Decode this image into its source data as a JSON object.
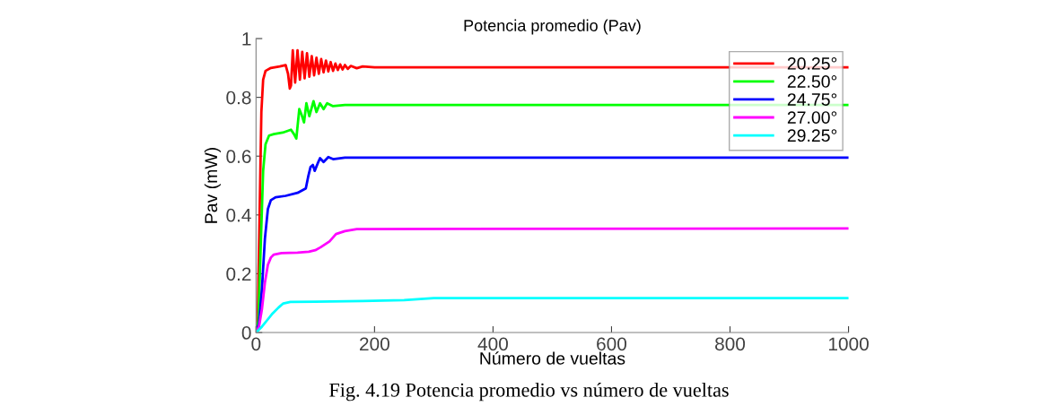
{
  "chart_data": {
    "type": "line",
    "title": "Potencia promedio (Pav)",
    "xlabel": "Número de vueltas",
    "ylabel": "Pav (mW)",
    "annotations": [
      "Fig. 4.19 Potencia promedio vs número de vueltas"
    ],
    "xlim": [
      0,
      1000
    ],
    "ylim": [
      0,
      1
    ],
    "xticks": [
      0,
      200,
      400,
      600,
      800,
      1000
    ],
    "yticks": [
      0,
      0.2,
      0.4,
      0.6,
      0.8,
      1
    ],
    "grid": false,
    "legend": "top right",
    "marker": "none",
    "line_style": "solid",
    "series": [
      {
        "name": "20.25°",
        "color": "#ff0000",
        "x": [
          0,
          3,
          6,
          9,
          12,
          16,
          25,
          40,
          50,
          54,
          57,
          59,
          62,
          66,
          70,
          74,
          78,
          82,
          86,
          90,
          94,
          98,
          102,
          106,
          110,
          114,
          118,
          122,
          126,
          130,
          134,
          138,
          142,
          146,
          150,
          155,
          160,
          170,
          180,
          200,
          300,
          1000
        ],
        "values": [
          0,
          0.05,
          0.4,
          0.75,
          0.86,
          0.89,
          0.9,
          0.905,
          0.91,
          0.88,
          0.83,
          0.84,
          0.96,
          0.85,
          0.96,
          0.86,
          0.955,
          0.865,
          0.95,
          0.87,
          0.94,
          0.875,
          0.935,
          0.88,
          0.93,
          0.885,
          0.925,
          0.888,
          0.92,
          0.89,
          0.915,
          0.893,
          0.912,
          0.895,
          0.91,
          0.897,
          0.907,
          0.899,
          0.905,
          0.902,
          0.902,
          0.902
        ]
      },
      {
        "name": "22.50°",
        "color": "#00ff00",
        "x": [
          0,
          4,
          8,
          12,
          16,
          22,
          30,
          45,
          59,
          64,
          68,
          73,
          77,
          81,
          85,
          90,
          97,
          102,
          108,
          114,
          120,
          130,
          150,
          200,
          1000
        ],
        "values": [
          0,
          0.04,
          0.3,
          0.55,
          0.64,
          0.67,
          0.675,
          0.68,
          0.69,
          0.675,
          0.66,
          0.76,
          0.74,
          0.715,
          0.78,
          0.736,
          0.787,
          0.75,
          0.78,
          0.76,
          0.78,
          0.77,
          0.774,
          0.774,
          0.774
        ]
      },
      {
        "name": "24.75°",
        "color": "#0000ff",
        "x": [
          0,
          5,
          10,
          15,
          20,
          25,
          33,
          50,
          70,
          84,
          88,
          92,
          96,
          99,
          104,
          108,
          114,
          122,
          130,
          150,
          1000
        ],
        "values": [
          0,
          0.03,
          0.15,
          0.32,
          0.42,
          0.45,
          0.46,
          0.465,
          0.475,
          0.49,
          0.53,
          0.563,
          0.57,
          0.55,
          0.575,
          0.593,
          0.58,
          0.597,
          0.59,
          0.595,
          0.595
        ]
      },
      {
        "name": "27.00°",
        "color": "#ff00ff",
        "x": [
          0,
          5,
          10,
          15,
          20,
          25,
          30,
          43,
          70,
          89,
          100,
          109,
          124,
          135,
          150,
          170,
          1000
        ],
        "values": [
          0,
          0.02,
          0.08,
          0.17,
          0.23,
          0.255,
          0.265,
          0.27,
          0.272,
          0.275,
          0.28,
          0.29,
          0.31,
          0.335,
          0.345,
          0.352,
          0.354
        ]
      },
      {
        "name": "29.25°",
        "color": "#00ffff",
        "x": [
          0,
          10,
          20,
          28,
          38,
          46,
          58,
          100,
          180,
          250,
          300,
          1000
        ],
        "values": [
          0,
          0.02,
          0.045,
          0.065,
          0.085,
          0.099,
          0.104,
          0.105,
          0.107,
          0.11,
          0.117,
          0.117
        ]
      }
    ]
  }
}
